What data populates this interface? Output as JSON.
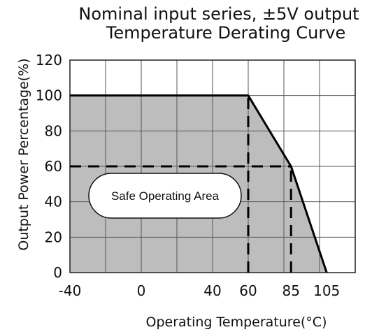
{
  "chart_data": {
    "type": "area",
    "title": "Nominal input series, ±5V output",
    "subtitle": "Temperature  Derating  Curve",
    "xlabel": "Operating  Temperature(°C)",
    "ylabel": "Output Power Percentage(%)",
    "x_tick_labels": [
      "-40",
      "0",
      "40",
      "60",
      "85",
      "105"
    ],
    "y_tick_labels": [
      "0",
      "20",
      "40",
      "60",
      "80",
      "100",
      "120"
    ],
    "ylim": [
      0,
      120
    ],
    "grid": true,
    "series": [
      {
        "x": [
          -40,
          60,
          85,
          105
        ],
        "y": [
          100,
          100,
          60,
          0
        ]
      }
    ],
    "reference_lines": [
      {
        "orientation": "vertical",
        "x": 60,
        "from_y": 0,
        "to_y": 100,
        "style": "dashed"
      },
      {
        "orientation": "vertical",
        "x": 85,
        "from_y": 0,
        "to_y": 60,
        "style": "dashed"
      },
      {
        "orientation": "horizontal",
        "y": 60,
        "from_x": -40,
        "to_x": 85,
        "style": "dashed"
      }
    ],
    "annotation": "Safe Operating Area",
    "fill_color": "#bdbdbd",
    "line_color": "#000000",
    "grid_color": "#555555"
  }
}
